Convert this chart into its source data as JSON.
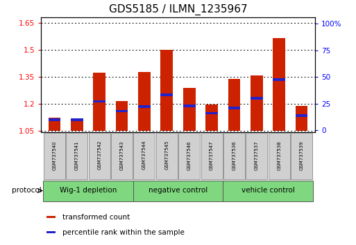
{
  "title": "GDS5185 / ILMN_1235967",
  "samples": [
    "GSM737540",
    "GSM737541",
    "GSM737542",
    "GSM737543",
    "GSM737544",
    "GSM737545",
    "GSM737546",
    "GSM737547",
    "GSM737536",
    "GSM737537",
    "GSM737538",
    "GSM737539"
  ],
  "bar_values": [
    1.12,
    1.11,
    1.37,
    1.215,
    1.375,
    1.5,
    1.285,
    1.195,
    1.335,
    1.355,
    1.565,
    1.185
  ],
  "percentile_pct": [
    10,
    10,
    27,
    18,
    22,
    33,
    23,
    16,
    21,
    30,
    47,
    14
  ],
  "bar_bottom": 1.05,
  "ylim_left": [
    1.04,
    1.68
  ],
  "ylim_right": [
    -2,
    106
  ],
  "yticks_left": [
    1.05,
    1.2,
    1.35,
    1.5,
    1.65
  ],
  "yticks_right": [
    0,
    25,
    50,
    75,
    100
  ],
  "groups": [
    {
      "label": "Wig-1 depletion",
      "start": 0,
      "end": 4
    },
    {
      "label": "negative control",
      "start": 4,
      "end": 8
    },
    {
      "label": "vehicle control",
      "start": 8,
      "end": 12
    }
  ],
  "group_color": "#7FD87F",
  "bar_color": "#CC2200",
  "percentile_color": "#2222CC",
  "bar_width": 0.55,
  "bg_color": "#ffffff",
  "plot_bg": "#ffffff",
  "legend_red_label": "transformed count",
  "legend_blue_label": "percentile rank within the sample",
  "protocol_label": "protocol",
  "title_fontsize": 11,
  "tick_fontsize": 7.5,
  "label_fontsize": 7
}
